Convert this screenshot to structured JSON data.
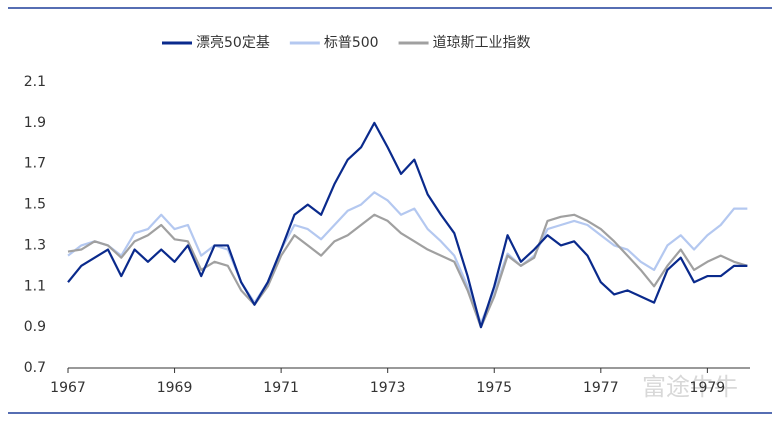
{
  "chart_data": {
    "type": "line",
    "x": [
      1967,
      1967.25,
      1967.5,
      1967.75,
      1968,
      1968.25,
      1968.5,
      1968.75,
      1969,
      1969.25,
      1969.5,
      1969.75,
      1970,
      1970.25,
      1970.5,
      1970.75,
      1971,
      1971.25,
      1971.5,
      1971.75,
      1972,
      1972.25,
      1972.5,
      1972.75,
      1973,
      1973.25,
      1973.5,
      1973.75,
      1974,
      1974.25,
      1974.5,
      1974.75,
      1975,
      1975.25,
      1975.5,
      1975.75,
      1976,
      1976.25,
      1976.5,
      1976.75,
      1977,
      1977.25,
      1977.5,
      1977.75,
      1978,
      1978.25,
      1978.5,
      1978.75,
      1979,
      1979.25,
      1979.5,
      1979.75
    ],
    "series": [
      {
        "name": "漂亮50定基",
        "color": "#0a2a8c",
        "values": [
          1.12,
          1.2,
          1.24,
          1.28,
          1.15,
          1.28,
          1.22,
          1.28,
          1.22,
          1.3,
          1.15,
          1.3,
          1.3,
          1.12,
          1.01,
          1.12,
          1.28,
          1.45,
          1.5,
          1.45,
          1.6,
          1.72,
          1.78,
          1.9,
          1.78,
          1.65,
          1.72,
          1.55,
          1.45,
          1.36,
          1.15,
          0.9,
          1.1,
          1.35,
          1.22,
          1.28,
          1.35,
          1.3,
          1.32,
          1.25,
          1.12,
          1.06,
          1.08,
          1.05,
          1.02,
          1.18,
          1.24,
          1.12,
          1.15,
          1.15,
          1.2,
          1.2
        ]
      },
      {
        "name": "标普500",
        "color": "#b4c8f0",
        "values": [
          1.25,
          1.3,
          1.32,
          1.3,
          1.25,
          1.36,
          1.38,
          1.45,
          1.38,
          1.4,
          1.25,
          1.3,
          1.28,
          1.12,
          1.02,
          1.12,
          1.28,
          1.4,
          1.38,
          1.33,
          1.4,
          1.47,
          1.5,
          1.56,
          1.52,
          1.45,
          1.48,
          1.38,
          1.32,
          1.25,
          1.1,
          0.92,
          1.08,
          1.26,
          1.2,
          1.25,
          1.38,
          1.4,
          1.42,
          1.4,
          1.35,
          1.3,
          1.28,
          1.22,
          1.18,
          1.3,
          1.35,
          1.28,
          1.35,
          1.4,
          1.48,
          1.48
        ]
      },
      {
        "name": "道琼斯工业指数",
        "color": "#a0a0a0",
        "values": [
          1.27,
          1.28,
          1.32,
          1.3,
          1.24,
          1.32,
          1.35,
          1.4,
          1.33,
          1.32,
          1.18,
          1.22,
          1.2,
          1.08,
          1.01,
          1.1,
          1.25,
          1.35,
          1.3,
          1.25,
          1.32,
          1.35,
          1.4,
          1.45,
          1.42,
          1.36,
          1.32,
          1.28,
          1.25,
          1.22,
          1.08,
          0.9,
          1.05,
          1.25,
          1.2,
          1.24,
          1.42,
          1.44,
          1.45,
          1.42,
          1.38,
          1.32,
          1.25,
          1.18,
          1.1,
          1.2,
          1.28,
          1.18,
          1.22,
          1.25,
          1.22,
          1.2
        ]
      }
    ],
    "xlim": [
      1967,
      1979.8
    ],
    "xticks": [
      1967,
      1969,
      1971,
      1973,
      1975,
      1977,
      1979
    ],
    "ylim": [
      0.7,
      2.1
    ],
    "yticks": [
      0.7,
      0.9,
      1.1,
      1.3,
      1.5,
      1.7,
      1.9,
      2.1
    ],
    "watermark": "富途牛牛"
  }
}
